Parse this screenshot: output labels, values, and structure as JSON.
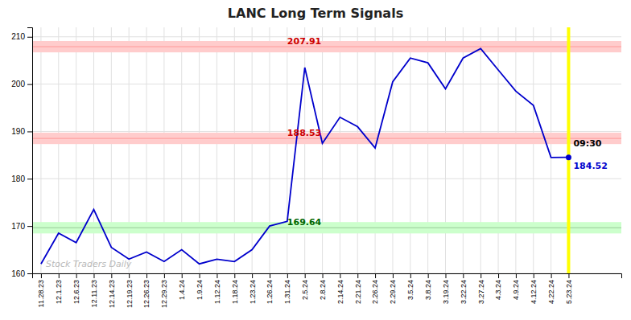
{
  "chart_data": {
    "type": "line",
    "title": "LANC Long Term Signals",
    "categories": [
      "11.28.23",
      "12.1.23",
      "12.6.23",
      "12.11.23",
      "12.14.23",
      "12.19.23",
      "12.26.23",
      "12.29.23",
      "1.4.24",
      "1.9.24",
      "1.12.24",
      "1.18.24",
      "1.23.24",
      "1.26.24",
      "1.31.24",
      "2.5.24",
      "2.8.24",
      "2.14.24",
      "2.21.24",
      "2.26.24",
      "2.29.24",
      "3.5.24",
      "3.8.24",
      "3.19.24",
      "3.22.24",
      "3.27.24",
      "4.3.24",
      "4.9.24",
      "4.12.24",
      "4.22.24",
      "5.23.24"
    ],
    "values": [
      162.0,
      168.5,
      166.5,
      173.5,
      165.5,
      163.0,
      164.5,
      162.5,
      165.0,
      162.0,
      163.0,
      162.5,
      165.0,
      170.0,
      171.0,
      203.5,
      187.5,
      193.0,
      191.0,
      186.5,
      200.5,
      205.5,
      204.5,
      199.0,
      205.5,
      207.5,
      203.0,
      198.5,
      195.5,
      184.5,
      184.52
    ],
    "color": "#0000cc",
    "ylim": [
      160,
      212
    ],
    "yticks": [
      160,
      170,
      180,
      190,
      200,
      210
    ],
    "grid": true,
    "levels": [
      {
        "value": 207.91,
        "band": [
          206.71,
          209.11
        ],
        "color": "#ff9999",
        "band_color": "#ffcccc",
        "text_color": "#cc0000"
      },
      {
        "value": 188.53,
        "band": [
          187.33,
          189.73
        ],
        "color": "#ff9999",
        "band_color": "#ffcccc",
        "text_color": "#cc0000"
      },
      {
        "value": 169.64,
        "band": [
          168.44,
          170.84
        ],
        "color": "#99cc99",
        "band_color": "#ccffcc",
        "text_color": "#006600"
      }
    ],
    "last": {
      "value": 184.52,
      "time": "09:30",
      "color": "yellow"
    },
    "annotations": [
      {
        "text": "Stock Traders Daily",
        "color": "#aaaaaa"
      }
    ]
  }
}
